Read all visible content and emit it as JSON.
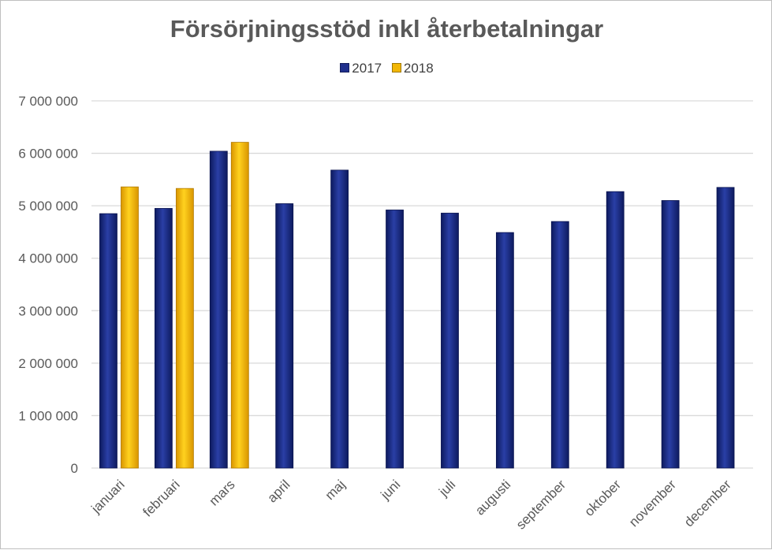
{
  "chart_data": {
    "type": "bar",
    "title": "Försörjningsstöd inkl återbetalningar",
    "xlabel": "",
    "ylabel": "",
    "categories": [
      "januari",
      "februari",
      "mars",
      "april",
      "maj",
      "juni",
      "juli",
      "augusti",
      "september",
      "oktober",
      "november",
      "december"
    ],
    "series": [
      {
        "name": "2017",
        "color": "#1F2F8C",
        "values": [
          4850000,
          4950000,
          6040000,
          5040000,
          5680000,
          4920000,
          4860000,
          4490000,
          4700000,
          5270000,
          5100000,
          5350000
        ]
      },
      {
        "name": "2018",
        "color": "#F2B705",
        "values": [
          5360000,
          5330000,
          6210000,
          null,
          null,
          null,
          null,
          null,
          null,
          null,
          null,
          null
        ]
      }
    ],
    "ylim": [
      0,
      7000000
    ],
    "yticks": [
      "0",
      "1 000 000",
      "2 000 000",
      "3 000 000",
      "4 000 000",
      "5 000 000",
      "6 000 000",
      "7 000 000"
    ],
    "grid": true,
    "legend_position": "top"
  }
}
